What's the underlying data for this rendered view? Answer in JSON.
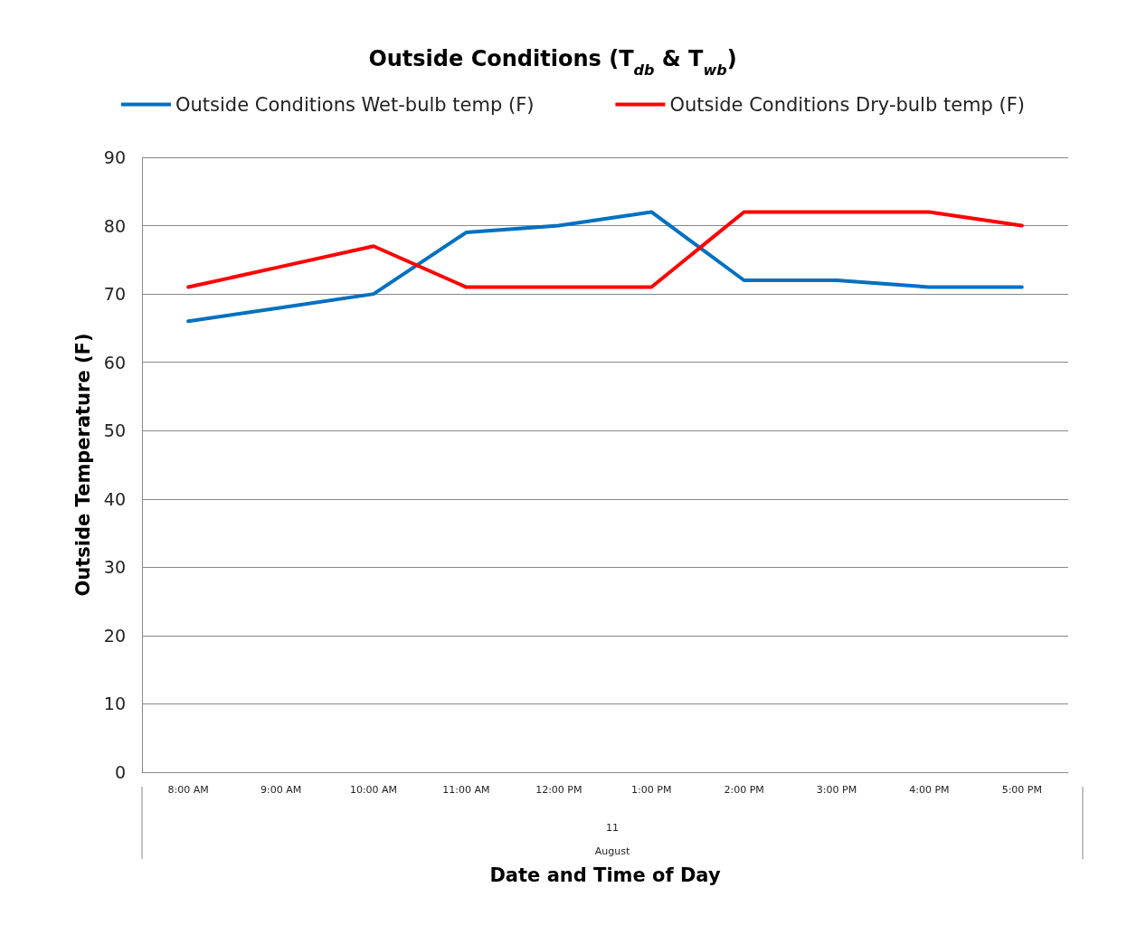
{
  "chart_data": {
    "type": "line",
    "title": "Outside Conditions (T$_{db}$ & T$_{wb}$)",
    "xlabel": "Date and Time of Day",
    "ylabel": "Outside Temperature (F)",
    "categories": [
      "8:00 AM",
      "9:00 AM",
      "10:00 AM",
      "11:00 AM",
      "12:00 PM",
      "1:00 PM",
      "2:00 PM",
      "3:00 PM",
      "4:00 PM",
      "5:00 PM"
    ],
    "series": [
      {
        "name": "Outside Conditions Wet-bulb temp (F)",
        "color": "#0070c0",
        "values": [
          66,
          68,
          70,
          79,
          80,
          82,
          72,
          72,
          71,
          71
        ]
      },
      {
        "name": "Outside Conditions Dry-bulb temp (F)",
        "color": "#ff0000",
        "values": [
          71,
          74,
          77,
          71,
          71,
          71,
          82,
          82,
          82,
          80
        ]
      }
    ],
    "ylim": [
      0,
      90
    ],
    "yticks": [
      0,
      10,
      20,
      30,
      40,
      50,
      60,
      70,
      80,
      90
    ],
    "grid": "y",
    "legend": "top",
    "marker": "none",
    "line_style": "solid",
    "annotations": [
      "11",
      "August"
    ]
  }
}
